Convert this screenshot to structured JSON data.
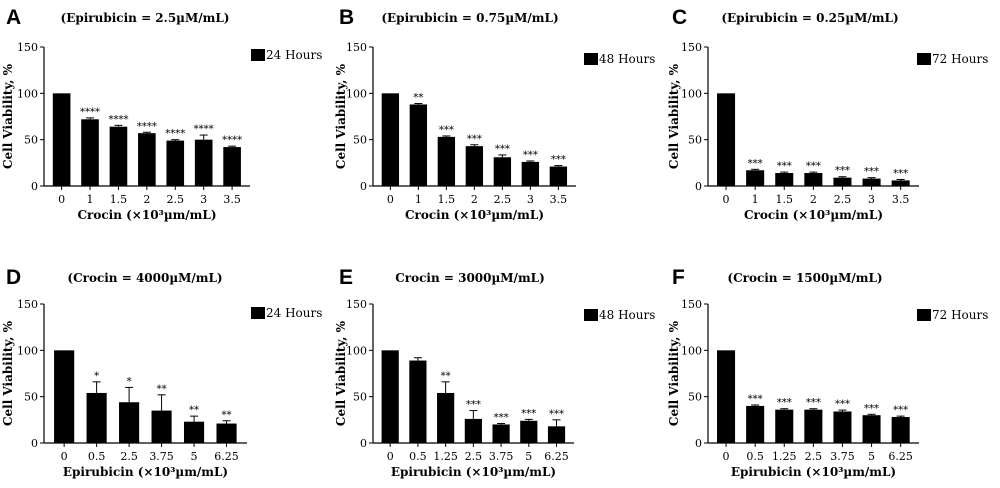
{
  "chart_data": [
    {
      "letter": "A",
      "type": "bar",
      "title": "(Epirubicin = 2.5µM/mL)",
      "xlabel": "Crocin (×10³µm/mL)",
      "ylabel": "Cell Viability, %",
      "legend": "24 Hours",
      "legend_position": "top-right",
      "ylim": [
        0,
        150
      ],
      "yticks": [
        "0",
        "50",
        "100",
        "150"
      ],
      "categories": [
        "0",
        "1",
        "1.5",
        "2",
        "2.5",
        "3",
        "3.5"
      ],
      "values": [
        100,
        72,
        64,
        57,
        49,
        50,
        42
      ],
      "errors": [
        0,
        1.5,
        1.5,
        1,
        1,
        5,
        1
      ],
      "significance": [
        "",
        "****",
        "****",
        "****",
        "****",
        "****",
        "****"
      ]
    },
    {
      "letter": "B",
      "type": "bar",
      "title": "(Epirubicin = 0.75µM/mL)",
      "xlabel": "Crocin (×10³µm/mL)",
      "ylabel": "Cell Viability, %",
      "legend": "48 Hours",
      "legend_position": "top-right",
      "ylim": [
        0,
        150
      ],
      "yticks": [
        "0",
        "50",
        "100",
        "150"
      ],
      "categories": [
        "0",
        "1",
        "1.5",
        "2",
        "2.5",
        "3",
        "3.5"
      ],
      "values": [
        100,
        88,
        53,
        43,
        31,
        26,
        21
      ],
      "errors": [
        0,
        1,
        1,
        1.5,
        2.5,
        1,
        1
      ],
      "significance": [
        "",
        "**",
        "***",
        "***",
        "***",
        "***",
        "***"
      ]
    },
    {
      "letter": "C",
      "type": "bar",
      "title": "(Epirubicin = 0.25µM/mL)",
      "xlabel": "Crocin (×10³µm/mL)",
      "ylabel": "Cell Viability, %",
      "legend": "72 Hours",
      "legend_position": "top-right",
      "ylim": [
        0,
        150
      ],
      "yticks": [
        "0",
        "50",
        "100",
        "150"
      ],
      "categories": [
        "0",
        "1",
        "1.5",
        "2",
        "2.5",
        "3",
        "3.5"
      ],
      "values": [
        100,
        17,
        14,
        14,
        9,
        8,
        6
      ],
      "errors": [
        0,
        1,
        1,
        1,
        1,
        1,
        1
      ],
      "significance": [
        "",
        "***",
        "***",
        "***",
        "***",
        "***",
        "***"
      ]
    },
    {
      "letter": "D",
      "type": "bar",
      "title": "(Crocin = 4000µM/mL)",
      "xlabel": "Epirubicin (×10³µm/mL)",
      "ylabel": "Cell Viability, %",
      "legend": "24 Hours",
      "legend_position": "top-right",
      "ylim": [
        0,
        150
      ],
      "yticks": [
        "0",
        "50",
        "100",
        "150"
      ],
      "categories": [
        "0",
        "0.5",
        "2.5",
        "3.75",
        "5",
        "6.25"
      ],
      "values": [
        100,
        54,
        44,
        35,
        23,
        21
      ],
      "errors": [
        0,
        12,
        16,
        17,
        6,
        3
      ],
      "significance": [
        "",
        "*",
        "*",
        "**",
        "**",
        "**"
      ]
    },
    {
      "letter": "E",
      "type": "bar",
      "title": "Crocin = 3000µM/mL)",
      "xlabel": "Epirubicin (×10³µm/mL)",
      "ylabel": "Cell Viability, %",
      "legend": "48 Hours",
      "legend_position": "top-right",
      "ylim": [
        0,
        150
      ],
      "yticks": [
        "0",
        "50",
        "100",
        "150"
      ],
      "categories": [
        "0",
        "0.5",
        "1.25",
        "2.5",
        "3.75",
        "5",
        "6.25"
      ],
      "values": [
        100,
        89,
        54,
        26,
        20,
        24,
        18
      ],
      "errors": [
        0,
        3,
        12,
        9,
        1,
        1.5,
        7
      ],
      "significance": [
        "",
        "",
        "**",
        "***",
        "***",
        "***",
        "***"
      ]
    },
    {
      "letter": "F",
      "type": "bar",
      "title": "(Crocin = 1500µM/mL)",
      "xlabel": "Epirubicin (×10³µm/mL)",
      "ylabel": "Cell Viability, %",
      "legend": "72 Hours",
      "legend_position": "top-right",
      "ylim": [
        0,
        150
      ],
      "yticks": [
        "0",
        "50",
        "100",
        "150"
      ],
      "categories": [
        "0",
        "0.5",
        "1.25",
        "2.5",
        "3.75",
        "5",
        "6.25"
      ],
      "values": [
        100,
        40,
        36,
        36,
        34,
        30,
        28
      ],
      "errors": [
        0,
        1,
        1,
        1,
        1.5,
        1,
        1
      ],
      "significance": [
        "",
        "***",
        "***",
        "***",
        "***",
        "***",
        "***"
      ]
    }
  ]
}
